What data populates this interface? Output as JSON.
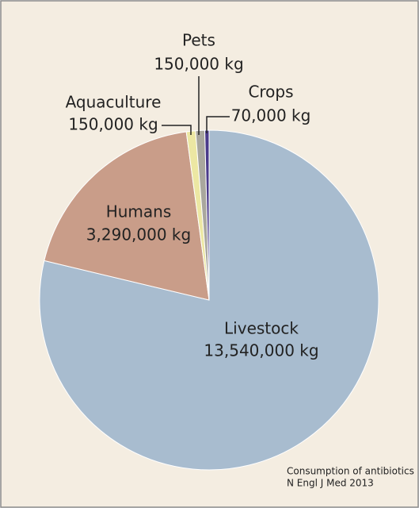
{
  "chart_data": {
    "type": "pie",
    "categories": [
      "Livestock",
      "Humans",
      "Aquaculture",
      "Pets",
      "Crops"
    ],
    "values": [
      13540000,
      3290000,
      150000,
      150000,
      70000
    ],
    "value_labels": [
      "13,540,000 kg",
      "3,290,000 kg",
      "150,000 kg",
      "150,000 kg",
      "70,000 kg"
    ],
    "colors": [
      "#a8bccf",
      "#c99d89",
      "#ece7a3",
      "#a9a79e",
      "#4a3a8a"
    ],
    "notes": [
      "Consumption of antibiotics",
      "N Engl J Med 2013"
    ]
  }
}
